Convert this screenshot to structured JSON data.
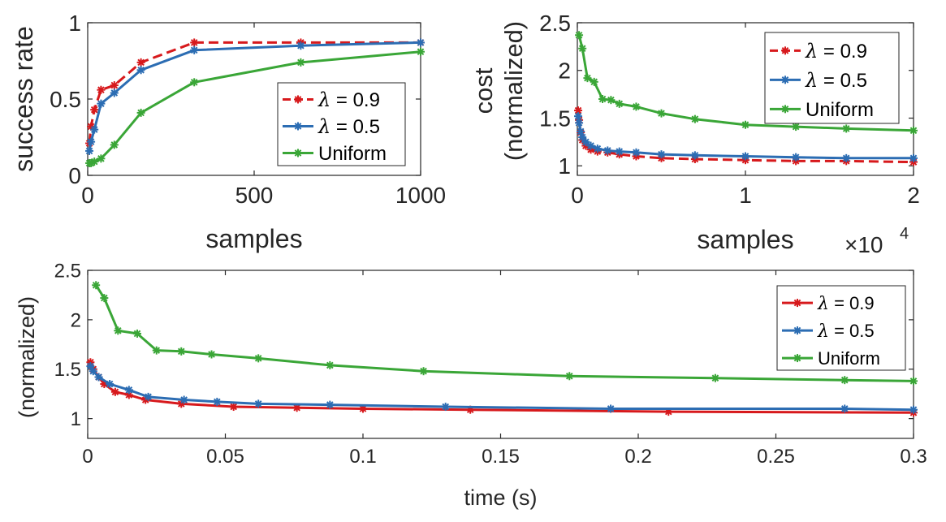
{
  "colors": {
    "lambda09": "#d7191c",
    "lambda05": "#2c6db3",
    "uniform": "#3aa637",
    "axis": "#262626"
  },
  "legend_labels": {
    "lambda_symbol": "λ",
    "lambda09_suffix": " = 0.9",
    "lambda05_suffix": " = 0.5",
    "uniform": "Uniform"
  },
  "chart_data": [
    {
      "id": "success-rate",
      "type": "line",
      "title": "",
      "xlabel": "samples",
      "ylabel": "success rate",
      "xlim": [
        0,
        1000
      ],
      "ylim": [
        0,
        1
      ],
      "xticks": [
        0,
        500,
        1000
      ],
      "xtick_labels": [
        "0",
        "500",
        "1000"
      ],
      "yticks": [
        0,
        0.5,
        1
      ],
      "ytick_labels": [
        "0",
        "0.5",
        "1"
      ],
      "grid": false,
      "legend_position": "lower-right",
      "series": [
        {
          "key": "lambda09",
          "name": "λ = 0.9",
          "dashed": true,
          "x": [
            5,
            10,
            20,
            40,
            80,
            160,
            320,
            640,
            1000
          ],
          "y": [
            0.21,
            0.32,
            0.43,
            0.56,
            0.59,
            0.74,
            0.87,
            0.87,
            0.87
          ]
        },
        {
          "key": "lambda05",
          "name": "λ = 0.5",
          "dashed": false,
          "x": [
            5,
            10,
            20,
            40,
            80,
            160,
            320,
            640,
            1000
          ],
          "y": [
            0.16,
            0.22,
            0.3,
            0.47,
            0.54,
            0.69,
            0.82,
            0.85,
            0.87
          ]
        },
        {
          "key": "uniform",
          "name": "Uniform",
          "dashed": false,
          "x": [
            5,
            10,
            20,
            40,
            80,
            160,
            320,
            640,
            1000
          ],
          "y": [
            0.08,
            0.08,
            0.09,
            0.11,
            0.2,
            0.41,
            0.61,
            0.74,
            0.81
          ]
        }
      ]
    },
    {
      "id": "cost-samples",
      "type": "line",
      "title": "",
      "xlabel": "samples",
      "ylabel": "cost (normalized)",
      "ylabel_line1": "cost",
      "ylabel_line2": "(normalized)",
      "xlim": [
        0,
        20000
      ],
      "ylim": [
        0.9,
        2.5
      ],
      "xticks": [
        0,
        10000,
        20000
      ],
      "xtick_labels": [
        "0",
        "1",
        "2"
      ],
      "yticks": [
        1,
        1.5,
        2,
        2.5
      ],
      "ytick_labels": [
        "1",
        "1.5",
        "2",
        "2.5"
      ],
      "x_multiplier": "×10",
      "x_multiplier_exp": "4",
      "grid": false,
      "legend_position": "top-right",
      "series": [
        {
          "key": "lambda09",
          "name": "λ = 0.9",
          "dashed": true,
          "x": [
            50,
            100,
            200,
            300,
            500,
            800,
            1200,
            1800,
            2500,
            3500,
            5000,
            7000,
            10000,
            13000,
            16000,
            20000
          ],
          "y": [
            1.58,
            1.48,
            1.35,
            1.27,
            1.21,
            1.17,
            1.15,
            1.14,
            1.12,
            1.1,
            1.08,
            1.07,
            1.06,
            1.05,
            1.05,
            1.04
          ]
        },
        {
          "key": "lambda05",
          "name": "λ = 0.5",
          "dashed": false,
          "x": [
            50,
            100,
            200,
            300,
            500,
            800,
            1200,
            1800,
            2500,
            3500,
            5000,
            7000,
            10000,
            13000,
            16000,
            20000
          ],
          "y": [
            1.52,
            1.45,
            1.36,
            1.3,
            1.25,
            1.21,
            1.18,
            1.16,
            1.15,
            1.14,
            1.12,
            1.11,
            1.1,
            1.09,
            1.08,
            1.08
          ]
        },
        {
          "key": "uniform",
          "name": "Uniform",
          "dashed": false,
          "x": [
            100,
            300,
            600,
            1000,
            1500,
            2000,
            2500,
            3500,
            5000,
            7000,
            10000,
            13000,
            16000,
            20000
          ],
          "y": [
            2.37,
            2.23,
            1.92,
            1.88,
            1.7,
            1.69,
            1.65,
            1.62,
            1.55,
            1.49,
            1.43,
            1.41,
            1.39,
            1.37
          ]
        }
      ]
    },
    {
      "id": "cost-time",
      "type": "line",
      "title": "",
      "xlabel": "time (s)",
      "ylabel": "(normalized)",
      "xlim": [
        0,
        0.3
      ],
      "ylim": [
        0.8,
        2.5
      ],
      "xticks": [
        0,
        0.05,
        0.1,
        0.15,
        0.2,
        0.25,
        0.3
      ],
      "xtick_labels": [
        "0",
        "0.05",
        "0.1",
        "0.15",
        "0.2",
        "0.25",
        "0.3"
      ],
      "yticks": [
        1,
        1.5,
        2,
        2.5
      ],
      "ytick_labels": [
        "1",
        "1.5",
        "2",
        "2.5"
      ],
      "grid": false,
      "legend_position": "top-right",
      "series": [
        {
          "key": "lambda09",
          "name": "λ = 0.9",
          "dashed": false,
          "x": [
            0.001,
            0.002,
            0.004,
            0.006,
            0.01,
            0.015,
            0.021,
            0.034,
            0.053,
            0.076,
            0.1,
            0.139,
            0.211,
            0.3
          ],
          "y": [
            1.57,
            1.5,
            1.42,
            1.35,
            1.27,
            1.24,
            1.19,
            1.15,
            1.12,
            1.11,
            1.1,
            1.09,
            1.07,
            1.06
          ]
        },
        {
          "key": "lambda05",
          "name": "λ = 0.5",
          "dashed": false,
          "x": [
            0.001,
            0.002,
            0.004,
            0.008,
            0.015,
            0.022,
            0.035,
            0.047,
            0.062,
            0.088,
            0.13,
            0.19,
            0.275,
            0.3
          ],
          "y": [
            1.53,
            1.48,
            1.42,
            1.35,
            1.29,
            1.22,
            1.19,
            1.17,
            1.15,
            1.14,
            1.12,
            1.1,
            1.1,
            1.09
          ]
        },
        {
          "key": "uniform",
          "name": "Uniform",
          "dashed": false,
          "x": [
            0.003,
            0.006,
            0.011,
            0.018,
            0.025,
            0.034,
            0.045,
            0.062,
            0.088,
            0.122,
            0.175,
            0.228,
            0.275,
            0.3
          ],
          "y": [
            2.35,
            2.22,
            1.89,
            1.86,
            1.69,
            1.68,
            1.65,
            1.61,
            1.54,
            1.48,
            1.43,
            1.41,
            1.39,
            1.38
          ]
        }
      ]
    }
  ]
}
